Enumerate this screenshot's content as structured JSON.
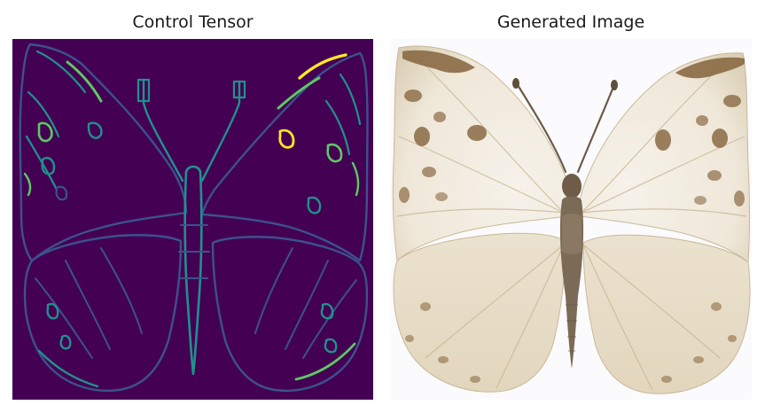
{
  "figure": {
    "panels": [
      {
        "title": "Control Tensor",
        "image_icon": "butterfly-edge-map",
        "colormap": {
          "background": "#440154",
          "edge_low": "#3b528b",
          "edge_mid": "#21918c",
          "edge_high": "#5ec962",
          "edge_peak": "#fde725"
        }
      },
      {
        "title": "Generated Image",
        "image_icon": "butterfly-photo",
        "colors": {
          "background": "#fbfafc",
          "wing": "#f1ebde",
          "wing_shade": "#d9cdb4",
          "marking": "#8a6a44",
          "body": "#5e4e3c"
        }
      }
    ]
  }
}
